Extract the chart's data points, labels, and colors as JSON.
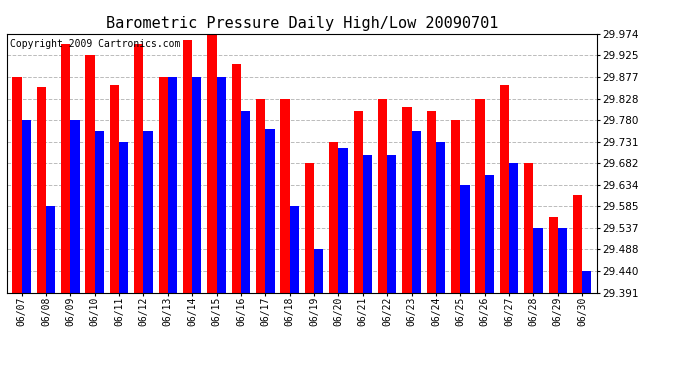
{
  "title": "Barometric Pressure Daily High/Low 20090701",
  "copyright": "Copyright 2009 Cartronics.com",
  "categories": [
    "06/07",
    "06/08",
    "06/09",
    "06/10",
    "06/11",
    "06/12",
    "06/13",
    "06/14",
    "06/15",
    "06/16",
    "06/17",
    "06/18",
    "06/19",
    "06/20",
    "06/21",
    "06/22",
    "06/23",
    "06/24",
    "06/25",
    "06/26",
    "06/27",
    "06/28",
    "06/29",
    "06/30"
  ],
  "highs": [
    29.877,
    29.855,
    29.95,
    29.925,
    29.858,
    29.95,
    29.877,
    29.96,
    29.974,
    29.906,
    29.828,
    29.828,
    29.682,
    29.731,
    29.8,
    29.828,
    29.808,
    29.8,
    29.78,
    29.828,
    29.858,
    29.682,
    29.56,
    29.61
  ],
  "lows": [
    29.78,
    29.585,
    29.78,
    29.755,
    29.731,
    29.755,
    29.877,
    29.877,
    29.877,
    29.8,
    29.76,
    29.585,
    29.488,
    29.716,
    29.7,
    29.7,
    29.755,
    29.731,
    29.634,
    29.655,
    29.682,
    29.537,
    29.537,
    29.44
  ],
  "bar_width": 0.38,
  "ylim_min": 29.391,
  "ylim_max": 29.974,
  "yticks": [
    29.974,
    29.925,
    29.877,
    29.828,
    29.78,
    29.731,
    29.682,
    29.634,
    29.585,
    29.537,
    29.488,
    29.44,
    29.391
  ],
  "high_color": "#FF0000",
  "low_color": "#0000FF",
  "bg_color": "#FFFFFF",
  "grid_color": "#BBBBBB",
  "title_fontsize": 11,
  "copyright_fontsize": 7
}
